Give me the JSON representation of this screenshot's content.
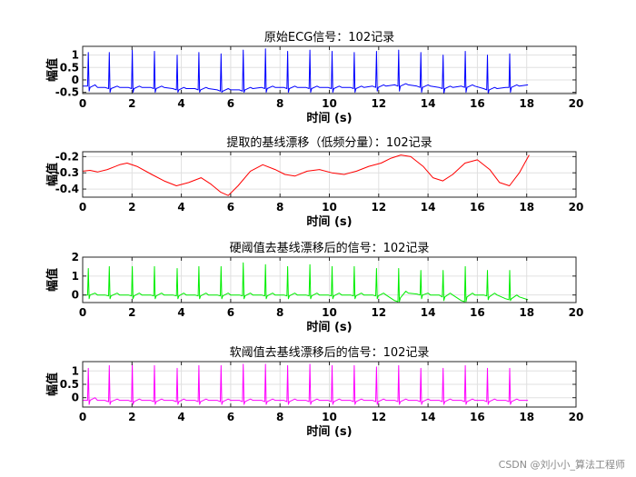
{
  "watermark": "CSDN @刘小小_算法工程师",
  "chart_data": [
    {
      "type": "line",
      "title": "原始ECG信号：102记录",
      "xlabel": "时间 (s)",
      "ylabel": "幅值",
      "xlim": [
        0,
        20
      ],
      "ylim": [
        -0.55,
        1.35
      ],
      "xticks": [
        0,
        2,
        4,
        6,
        8,
        10,
        12,
        14,
        16,
        18,
        20
      ],
      "yticks": [
        -0.5,
        0,
        0.5,
        1
      ],
      "ytick_labels": [
        "-0.5",
        "0",
        "0.5",
        "1"
      ],
      "grid": true,
      "color": "#0000ff",
      "series": [
        {
          "x": [
            0,
            0.2,
            0.23,
            0.26,
            0.3,
            0.5,
            0.6,
            0.9,
            1.05,
            1.08,
            1.11,
            1.15,
            1.4,
            1.5,
            1.85,
            1.98,
            2.01,
            2.04,
            2.08,
            2.3,
            2.4,
            2.75,
            2.88,
            2.91,
            2.94,
            2.98,
            3.2,
            3.3,
            3.65,
            3.8,
            3.83,
            3.86,
            3.9,
            4.1,
            4.2,
            4.55,
            4.68,
            4.71,
            4.74,
            4.78,
            5.0,
            5.1,
            5.45,
            5.58,
            5.61,
            5.64,
            5.68,
            5.9,
            6.0,
            6.35,
            6.48,
            6.51,
            6.54,
            6.58,
            6.8,
            6.9,
            7.25,
            7.38,
            7.41,
            7.44,
            7.48,
            7.7,
            7.8,
            8.15,
            8.28,
            8.31,
            8.34,
            8.38,
            8.6,
            8.7,
            9.05,
            9.18,
            9.21,
            9.24,
            9.28,
            9.5,
            9.6,
            9.95,
            10.08,
            10.11,
            10.14,
            10.18,
            10.4,
            10.5,
            10.85,
            10.98,
            11.01,
            11.04,
            11.08,
            11.3,
            11.4,
            11.75,
            11.88,
            11.91,
            11.94,
            11.98,
            12.2,
            12.3,
            12.65,
            12.78,
            12.81,
            12.84,
            12.88,
            13.1,
            13.2,
            13.55,
            13.68,
            13.71,
            13.74,
            13.78,
            14.0,
            14.1,
            14.45,
            14.58,
            14.61,
            14.64,
            14.68,
            14.9,
            15.0,
            15.35,
            15.48,
            15.51,
            15.54,
            15.58,
            15.8,
            15.9,
            16.25,
            16.38,
            16.41,
            16.44,
            16.48,
            16.7,
            16.8,
            17.15,
            17.28,
            17.31,
            17.34,
            17.38,
            17.6,
            17.7,
            18.05
          ],
          "y": [
            -0.25,
            -0.25,
            1.1,
            -0.45,
            -0.3,
            -0.2,
            -0.3,
            -0.3,
            -0.35,
            1.1,
            -0.5,
            -0.35,
            -0.25,
            -0.3,
            -0.3,
            -0.35,
            1.2,
            -0.5,
            -0.35,
            -0.25,
            -0.3,
            -0.3,
            -0.35,
            1.15,
            -0.5,
            -0.35,
            -0.25,
            -0.3,
            -0.35,
            -0.4,
            1.0,
            -0.5,
            -0.4,
            -0.3,
            -0.35,
            -0.35,
            -0.4,
            1.1,
            -0.5,
            -0.4,
            -0.3,
            -0.35,
            -0.4,
            -0.45,
            1.05,
            -0.5,
            -0.45,
            -0.35,
            -0.4,
            -0.4,
            -0.45,
            1.2,
            -0.5,
            -0.4,
            -0.3,
            -0.35,
            -0.3,
            -0.35,
            1.25,
            -0.5,
            -0.35,
            -0.25,
            -0.3,
            -0.3,
            -0.35,
            1.15,
            -0.5,
            -0.35,
            -0.25,
            -0.3,
            -0.3,
            -0.35,
            1.2,
            -0.5,
            -0.35,
            -0.25,
            -0.3,
            -0.3,
            -0.35,
            1.15,
            -0.5,
            -0.35,
            -0.25,
            -0.3,
            -0.3,
            -0.35,
            1.1,
            -0.5,
            -0.35,
            -0.25,
            -0.3,
            -0.25,
            -0.3,
            1.15,
            -0.45,
            -0.3,
            -0.2,
            -0.25,
            -0.2,
            -0.25,
            1.2,
            -0.45,
            -0.25,
            -0.15,
            -0.2,
            -0.25,
            -0.3,
            1.1,
            -0.5,
            -0.3,
            -0.2,
            -0.25,
            -0.3,
            -0.35,
            1.0,
            -0.55,
            -0.35,
            -0.25,
            -0.3,
            -0.25,
            -0.3,
            1.15,
            -0.5,
            -0.3,
            -0.2,
            -0.25,
            -0.35,
            -0.4,
            1.0,
            -0.55,
            -0.4,
            -0.3,
            -0.35,
            -0.3,
            -0.3,
            1.05,
            -0.5,
            -0.3,
            -0.2,
            -0.25,
            -0.2
          ]
        }
      ]
    },
    {
      "type": "line",
      "title": "提取的基线漂移（低频分量）：102记录",
      "xlabel": "时间 (s)",
      "ylabel": "幅值",
      "xlim": [
        0,
        20
      ],
      "ylim": [
        -0.45,
        -0.17
      ],
      "xticks": [
        0,
        2,
        4,
        6,
        8,
        10,
        12,
        14,
        16,
        18,
        20
      ],
      "yticks": [
        -0.4,
        -0.3,
        -0.2
      ],
      "ytick_labels": [
        "-0.4",
        "-0.3",
        "-0.2"
      ],
      "grid": true,
      "color": "#ff0000",
      "series": [
        {
          "x": [
            0,
            0.3,
            0.6,
            1.0,
            1.5,
            1.8,
            2.2,
            2.8,
            3.3,
            3.8,
            4.3,
            4.8,
            5.2,
            5.6,
            5.9,
            6.3,
            6.8,
            7.3,
            7.8,
            8.2,
            8.6,
            9.1,
            9.6,
            10.1,
            10.6,
            11.1,
            11.6,
            12.1,
            12.5,
            12.9,
            13.3,
            13.8,
            14.2,
            14.6,
            15.0,
            15.5,
            16.0,
            16.5,
            16.9,
            17.3,
            17.7,
            18.1
          ],
          "y": [
            -0.29,
            -0.285,
            -0.295,
            -0.28,
            -0.25,
            -0.24,
            -0.26,
            -0.31,
            -0.35,
            -0.38,
            -0.36,
            -0.33,
            -0.37,
            -0.42,
            -0.44,
            -0.38,
            -0.29,
            -0.25,
            -0.28,
            -0.31,
            -0.32,
            -0.29,
            -0.28,
            -0.3,
            -0.31,
            -0.29,
            -0.26,
            -0.24,
            -0.21,
            -0.19,
            -0.2,
            -0.26,
            -0.33,
            -0.35,
            -0.31,
            -0.24,
            -0.22,
            -0.28,
            -0.36,
            -0.38,
            -0.3,
            -0.19
          ]
        }
      ]
    },
    {
      "type": "line",
      "title": "硬阈值去基线漂移后的信号：102记录",
      "xlabel": "时间 (s)",
      "ylabel": "幅值",
      "xlim": [
        0,
        20
      ],
      "ylim": [
        -0.4,
        2.0
      ],
      "xticks": [
        0,
        2,
        4,
        6,
        8,
        10,
        12,
        14,
        16,
        18,
        20
      ],
      "yticks": [
        0,
        1,
        2
      ],
      "ytick_labels": [
        "0",
        "1",
        "2"
      ],
      "grid": true,
      "color": "#00ee00",
      "series": [
        {
          "x": [
            0,
            0.2,
            0.23,
            0.26,
            0.3,
            0.5,
            0.6,
            0.9,
            1.05,
            1.08,
            1.11,
            1.15,
            1.4,
            1.5,
            1.85,
            1.98,
            2.01,
            2.04,
            2.08,
            2.3,
            2.4,
            2.75,
            2.88,
            2.91,
            2.94,
            2.98,
            3.2,
            3.3,
            3.65,
            3.8,
            3.83,
            3.86,
            3.9,
            4.1,
            4.2,
            4.55,
            4.68,
            4.71,
            4.74,
            4.78,
            5.0,
            5.1,
            5.45,
            5.58,
            5.61,
            5.64,
            5.68,
            5.9,
            6.0,
            6.35,
            6.48,
            6.51,
            6.54,
            6.58,
            6.8,
            6.9,
            7.25,
            7.38,
            7.41,
            7.44,
            7.48,
            7.7,
            7.8,
            8.15,
            8.28,
            8.31,
            8.34,
            8.38,
            8.6,
            8.7,
            9.05,
            9.18,
            9.21,
            9.24,
            9.28,
            9.5,
            9.6,
            9.95,
            10.08,
            10.11,
            10.14,
            10.18,
            10.4,
            10.5,
            10.85,
            10.98,
            11.01,
            11.04,
            11.08,
            11.3,
            11.4,
            11.75,
            11.88,
            11.91,
            11.94,
            11.98,
            12.2,
            12.3,
            12.65,
            12.78,
            12.81,
            12.84,
            12.88,
            13.1,
            13.2,
            13.55,
            13.68,
            13.71,
            13.74,
            13.78,
            14.0,
            14.1,
            14.45,
            14.58,
            14.61,
            14.64,
            14.68,
            14.9,
            15.0,
            15.35,
            15.48,
            15.51,
            15.54,
            15.58,
            15.8,
            15.9,
            16.25,
            16.38,
            16.41,
            16.44,
            16.48,
            16.7,
            16.8,
            17.15,
            17.28,
            17.31,
            17.34,
            17.38,
            17.6,
            17.7,
            18.05
          ],
          "y": [
            0.0,
            0.0,
            1.4,
            -0.2,
            0.0,
            0.1,
            0.0,
            0.0,
            -0.05,
            1.5,
            -0.2,
            -0.05,
            0.1,
            0.0,
            0.0,
            -0.05,
            1.5,
            -0.2,
            -0.05,
            0.1,
            0.0,
            0.0,
            -0.05,
            1.5,
            -0.2,
            -0.05,
            0.1,
            0.0,
            0.0,
            -0.05,
            1.4,
            -0.2,
            -0.05,
            0.1,
            0.0,
            0.0,
            -0.05,
            1.5,
            -0.2,
            -0.05,
            0.1,
            0.0,
            0.0,
            -0.05,
            1.5,
            -0.2,
            -0.05,
            0.1,
            0.0,
            0.0,
            -0.05,
            1.7,
            -0.2,
            -0.05,
            0.1,
            0.0,
            0.0,
            -0.05,
            1.6,
            -0.2,
            -0.05,
            0.1,
            0.0,
            0.0,
            -0.05,
            1.5,
            -0.2,
            -0.05,
            0.1,
            0.0,
            0.0,
            -0.05,
            1.6,
            -0.2,
            -0.05,
            0.1,
            0.0,
            0.0,
            -0.05,
            1.5,
            -0.2,
            -0.05,
            0.1,
            0.0,
            0.0,
            -0.05,
            1.5,
            -0.2,
            -0.05,
            0.1,
            0.0,
            0.0,
            -0.05,
            1.4,
            -0.2,
            -0.05,
            0.1,
            0.0,
            -0.3,
            -0.35,
            1.4,
            -0.35,
            -0.15,
            0.2,
            0.1,
            0.05,
            0.0,
            1.3,
            -0.2,
            0.0,
            0.1,
            0.0,
            0.0,
            -0.1,
            1.3,
            -0.3,
            -0.1,
            0.1,
            0.0,
            -0.3,
            -0.35,
            1.5,
            -0.35,
            -0.1,
            0.1,
            0.0,
            0.0,
            -0.05,
            1.3,
            -0.25,
            -0.1,
            0.1,
            0.0,
            -0.2,
            -0.25,
            1.3,
            -0.3,
            -0.2,
            0.0,
            -0.1,
            -0.25
          ]
        }
      ]
    },
    {
      "type": "line",
      "title": "软阈值去基线漂移后的信号：102记录",
      "xlabel": "时间 (s)",
      "ylabel": "幅值",
      "xlim": [
        0,
        20
      ],
      "ylim": [
        -0.35,
        1.35
      ],
      "xticks": [
        0,
        2,
        4,
        6,
        8,
        10,
        12,
        14,
        16,
        18,
        20
      ],
      "yticks": [
        0,
        0.5,
        1
      ],
      "ytick_labels": [
        "0",
        "0.5",
        "1"
      ],
      "grid": true,
      "color": "#ff00ff",
      "series": [
        {
          "x": [
            0,
            0.2,
            0.23,
            0.26,
            0.3,
            0.5,
            0.6,
            0.9,
            1.05,
            1.08,
            1.11,
            1.15,
            1.4,
            1.5,
            1.85,
            1.98,
            2.01,
            2.04,
            2.08,
            2.3,
            2.4,
            2.75,
            2.88,
            2.91,
            2.94,
            2.98,
            3.2,
            3.3,
            3.65,
            3.8,
            3.83,
            3.86,
            3.9,
            4.1,
            4.2,
            4.55,
            4.68,
            4.71,
            4.74,
            4.78,
            5.0,
            5.1,
            5.45,
            5.58,
            5.61,
            5.64,
            5.68,
            5.9,
            6.0,
            6.35,
            6.48,
            6.51,
            6.54,
            6.58,
            6.8,
            6.9,
            7.25,
            7.38,
            7.41,
            7.44,
            7.48,
            7.7,
            7.8,
            8.15,
            8.28,
            8.31,
            8.34,
            8.38,
            8.6,
            8.7,
            9.05,
            9.18,
            9.21,
            9.24,
            9.28,
            9.5,
            9.6,
            9.95,
            10.08,
            10.11,
            10.14,
            10.18,
            10.4,
            10.5,
            10.85,
            10.98,
            11.01,
            11.04,
            11.08,
            11.3,
            11.4,
            11.75,
            11.88,
            11.91,
            11.94,
            11.98,
            12.2,
            12.3,
            12.65,
            12.78,
            12.81,
            12.84,
            12.88,
            13.1,
            13.2,
            13.55,
            13.68,
            13.71,
            13.74,
            13.78,
            14.0,
            14.1,
            14.45,
            14.58,
            14.61,
            14.64,
            14.68,
            14.9,
            15.0,
            15.35,
            15.48,
            15.51,
            15.54,
            15.58,
            15.8,
            15.9,
            16.25,
            16.38,
            16.41,
            16.44,
            16.48,
            16.7,
            16.8,
            17.15,
            17.28,
            17.31,
            17.34,
            17.38,
            17.6,
            17.7,
            18.05
          ],
          "y": [
            -0.1,
            -0.1,
            1.1,
            -0.25,
            -0.1,
            0.0,
            -0.1,
            -0.1,
            -0.15,
            1.2,
            -0.25,
            -0.15,
            -0.05,
            -0.1,
            -0.1,
            -0.15,
            1.25,
            -0.25,
            -0.15,
            -0.05,
            -0.1,
            -0.1,
            -0.15,
            1.2,
            -0.25,
            -0.15,
            -0.05,
            -0.1,
            -0.1,
            -0.15,
            1.1,
            -0.25,
            -0.15,
            -0.05,
            -0.1,
            -0.1,
            -0.15,
            1.2,
            -0.25,
            -0.15,
            -0.05,
            -0.1,
            -0.1,
            -0.15,
            1.2,
            -0.25,
            -0.15,
            -0.05,
            -0.1,
            -0.1,
            -0.15,
            1.25,
            -0.25,
            -0.15,
            -0.05,
            -0.1,
            -0.1,
            -0.15,
            1.25,
            -0.25,
            -0.15,
            -0.05,
            -0.1,
            -0.1,
            -0.15,
            1.2,
            -0.25,
            -0.15,
            -0.05,
            -0.1,
            -0.1,
            -0.15,
            1.25,
            -0.25,
            -0.15,
            -0.05,
            -0.1,
            -0.1,
            -0.15,
            1.2,
            -0.25,
            -0.15,
            -0.05,
            -0.1,
            -0.1,
            -0.15,
            1.2,
            -0.25,
            -0.15,
            -0.05,
            -0.1,
            -0.1,
            -0.15,
            1.15,
            -0.25,
            -0.15,
            -0.05,
            -0.1,
            -0.1,
            -0.15,
            1.2,
            -0.25,
            -0.15,
            -0.05,
            -0.1,
            -0.1,
            -0.15,
            1.1,
            -0.25,
            -0.15,
            -0.05,
            -0.1,
            -0.1,
            -0.15,
            1.1,
            -0.25,
            -0.15,
            -0.05,
            -0.1,
            -0.1,
            -0.15,
            1.2,
            -0.25,
            -0.15,
            -0.05,
            -0.1,
            -0.1,
            -0.15,
            1.1,
            -0.25,
            -0.15,
            -0.05,
            -0.1,
            -0.1,
            -0.15,
            1.1,
            -0.25,
            -0.15,
            -0.05,
            -0.1,
            -0.1
          ]
        }
      ]
    }
  ]
}
